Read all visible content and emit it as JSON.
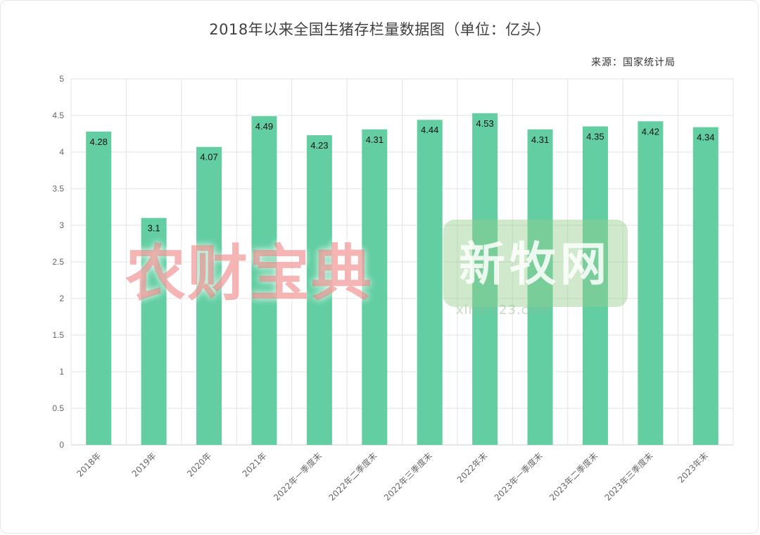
{
  "chart_data": {
    "type": "bar",
    "title": "2018年以来全国生猪存栏量数据图（单位：亿头）",
    "source": "来源：国家统计局",
    "categories": [
      "2018年",
      "2019年",
      "2020年",
      "2021年",
      "2022年一季度末",
      "2022年二季度末",
      "2022年三季度末",
      "2022年末",
      "2023年一季度末",
      "2023年二季度末",
      "2023年三季度末",
      "2023年末"
    ],
    "values": [
      4.28,
      3.1,
      4.07,
      4.49,
      4.23,
      4.31,
      4.44,
      4.53,
      4.31,
      4.35,
      4.42,
      4.34
    ],
    "value_labels": [
      "4.28",
      "3.1",
      "4.07",
      "4.49",
      "4.23",
      "4.31",
      "4.44",
      "4.53",
      "4.31",
      "4.35",
      "4.42",
      "4.34"
    ],
    "yticks": [
      "0",
      "0.5",
      "1",
      "1.5",
      "2",
      "2.5",
      "3",
      "3.5",
      "4",
      "4.5",
      "5"
    ],
    "ylim": [
      0,
      5
    ],
    "grid": true,
    "bar_color": "#62cea2"
  },
  "watermarks": {
    "left": "农财宝典",
    "right": "新牧网",
    "right_url": "xinm123.com"
  }
}
